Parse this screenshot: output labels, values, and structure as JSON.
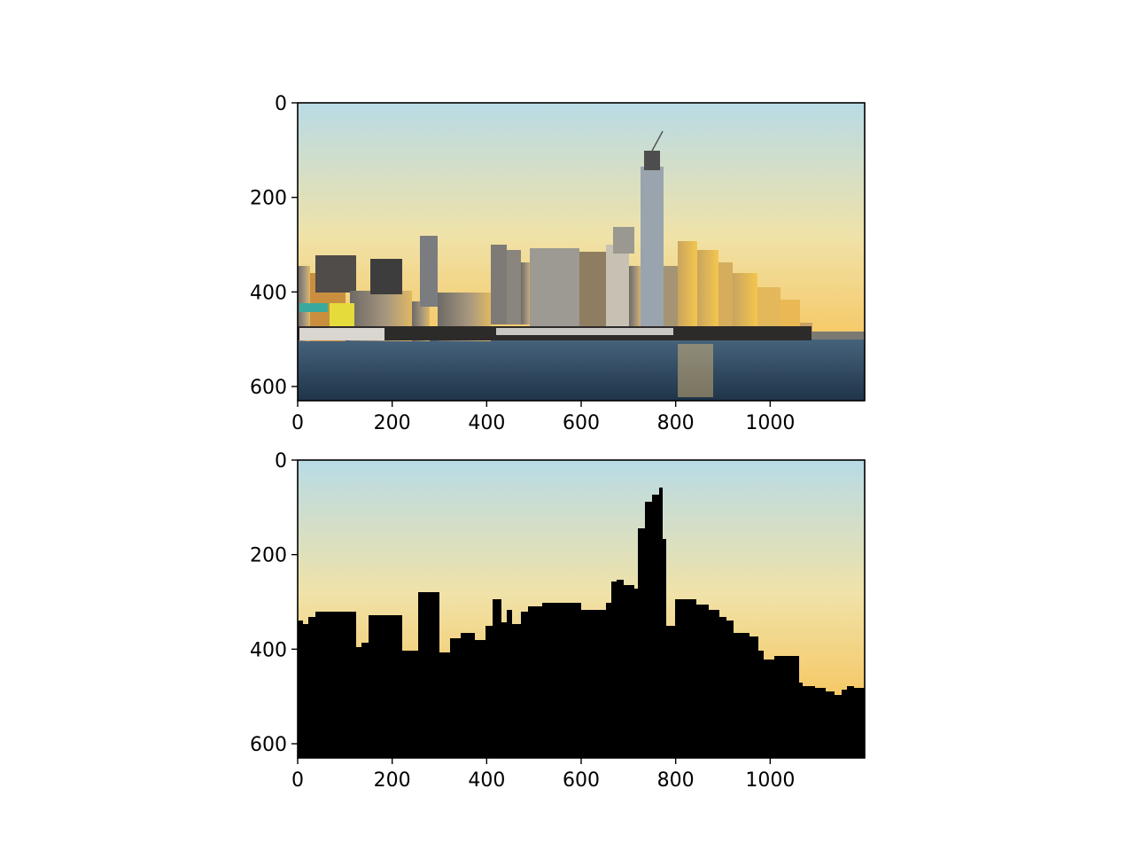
{
  "figure": {
    "panels": [
      {
        "name": "original-photo",
        "subject": "city skyline at sunset over water",
        "image_width": 1200,
        "image_height": 630,
        "x_ticks": [
          "0",
          "200",
          "400",
          "600",
          "800",
          "1000"
        ],
        "y_ticks": [
          "0",
          "200",
          "400",
          "600"
        ]
      },
      {
        "name": "segmented-silhouette",
        "subject": "sky kept, skyline and water masked in black",
        "image_width": 1200,
        "image_height": 630,
        "x_ticks": [
          "0",
          "200",
          "400",
          "600",
          "800",
          "1000"
        ],
        "y_ticks": [
          "0",
          "200",
          "400",
          "600"
        ]
      }
    ]
  },
  "colors": {
    "sky_top": "#b8dbe6",
    "sky_mid": "#f0e2a8",
    "sky_low": "#f7c45a",
    "horizon": "#f3b23c",
    "water_top": "#46637c",
    "water_bottom": "#1f3448",
    "mask": "#000000",
    "axis": "#000000"
  }
}
